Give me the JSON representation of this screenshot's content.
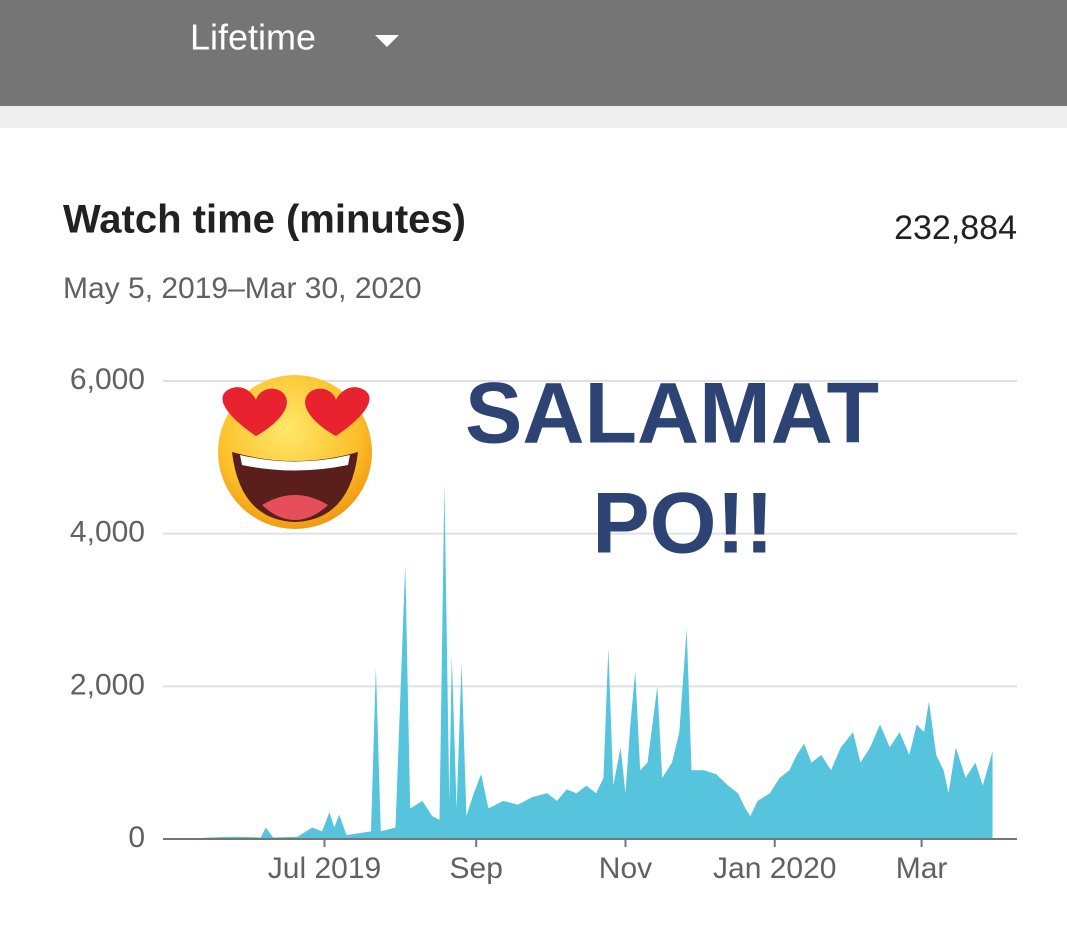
{
  "header": {
    "period": "Lifetime"
  },
  "card": {
    "title": "Watch time (minutes)",
    "total": "232,884",
    "date_range": "May 5, 2019–Mar 30, 2020"
  },
  "overlay": {
    "line1": "SALAMAT",
    "line2": "PO!!"
  },
  "chart_data": {
    "type": "area",
    "color": "#55c4dc",
    "grid": true,
    "x": [
      "2019-05-05",
      "2019-05-15",
      "2019-05-25",
      "2019-06-05",
      "2019-06-07",
      "2019-06-10",
      "2019-06-20",
      "2019-06-26",
      "2019-06-30",
      "2019-07-03",
      "2019-07-05",
      "2019-07-07",
      "2019-07-10",
      "2019-07-20",
      "2019-07-22",
      "2019-07-24",
      "2019-07-30",
      "2019-08-03",
      "2019-08-05",
      "2019-08-10",
      "2019-08-14",
      "2019-08-17",
      "2019-08-19",
      "2019-08-21",
      "2019-08-22",
      "2019-08-24",
      "2019-08-26",
      "2019-08-28",
      "2019-08-31",
      "2019-09-03",
      "2019-09-06",
      "2019-09-12",
      "2019-09-18",
      "2019-09-24",
      "2019-09-30",
      "2019-10-04",
      "2019-10-08",
      "2019-10-12",
      "2019-10-16",
      "2019-10-20",
      "2019-10-23",
      "2019-10-25",
      "2019-10-27",
      "2019-10-30",
      "2019-11-01",
      "2019-11-03",
      "2019-11-05",
      "2019-11-07",
      "2019-11-10",
      "2019-11-14",
      "2019-11-16",
      "2019-11-20",
      "2019-11-23",
      "2019-11-26",
      "2019-11-28",
      "2019-12-03",
      "2019-12-08",
      "2019-12-13",
      "2019-12-17",
      "2019-12-20",
      "2019-12-22",
      "2019-12-25",
      "2019-12-30",
      "2020-01-03",
      "2020-01-07",
      "2020-01-10",
      "2020-01-13",
      "2020-01-16",
      "2020-01-20",
      "2020-01-24",
      "2020-01-28",
      "2020-02-02",
      "2020-02-05",
      "2020-02-09",
      "2020-02-13",
      "2020-02-17",
      "2020-02-21",
      "2020-02-25",
      "2020-02-28",
      "2020-03-02",
      "2020-03-04",
      "2020-03-07",
      "2020-03-10",
      "2020-03-12",
      "2020-03-15",
      "2020-03-19",
      "2020-03-23",
      "2020-03-26",
      "2020-03-30"
    ],
    "values": [
      0,
      20,
      30,
      20,
      150,
      20,
      30,
      150,
      100,
      350,
      150,
      320,
      50,
      100,
      2250,
      100,
      150,
      3600,
      400,
      500,
      300,
      250,
      4650,
      500,
      2400,
      400,
      2300,
      300,
      600,
      850,
      400,
      500,
      450,
      550,
      600,
      500,
      650,
      600,
      700,
      600,
      800,
      2500,
      700,
      1200,
      600,
      1500,
      2200,
      900,
      1000,
      2000,
      800,
      1000,
      1400,
      2750,
      900,
      900,
      850,
      700,
      600,
      400,
      300,
      500,
      600,
      800,
      900,
      1100,
      1250,
      1000,
      1100,
      900,
      1200,
      1400,
      1000,
      1200,
      1500,
      1200,
      1400,
      1100,
      1500,
      1400,
      1800,
      1100,
      900,
      600,
      1200,
      800,
      1000,
      700,
      1150
    ],
    "xlim": [
      "2019-04-26",
      "2020-04-09"
    ],
    "xticks": [
      {
        "value": "2019-07-01",
        "label": "Jul 2019"
      },
      {
        "value": "2019-09-01",
        "label": "Sep"
      },
      {
        "value": "2019-11-01",
        "label": "Nov"
      },
      {
        "value": "2020-01-01",
        "label": "Jan 2020"
      },
      {
        "value": "2020-03-01",
        "label": "Mar"
      }
    ],
    "ylim": [
      0,
      6000
    ],
    "yticks": [
      0,
      {
        "value": 2000,
        "label": "2,000"
      },
      {
        "value": 4000,
        "label": "4,000"
      },
      {
        "value": 6000,
        "label": "6,000"
      }
    ]
  }
}
